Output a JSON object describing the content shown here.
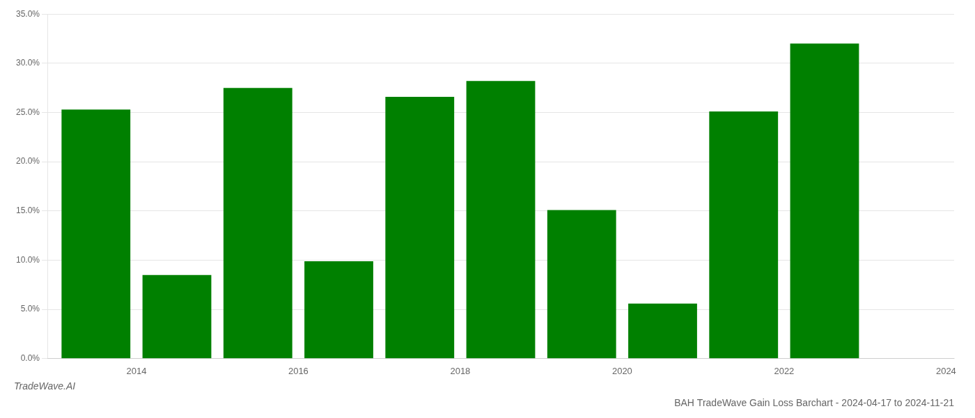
{
  "chart_data": {
    "type": "bar",
    "title": "BAH TradeWave Gain Loss Barchart - 2024-04-17 to 2024-11-21",
    "annotations": [
      "TradeWave.AI"
    ],
    "x": [
      2014,
      2015,
      2016,
      2017,
      2018,
      2019,
      2020,
      2021,
      2022,
      2023
    ],
    "values": [
      0.253,
      0.085,
      0.275,
      0.099,
      0.266,
      0.282,
      0.151,
      0.056,
      0.251,
      0.32
    ],
    "color": "#008000",
    "xlim": [
      2013.4,
      2024.6
    ],
    "xticks": [
      {
        "value": 2014.5,
        "label": "2014"
      },
      {
        "value": 2016.5,
        "label": "2016"
      },
      {
        "value": 2018.5,
        "label": "2018"
      },
      {
        "value": 2020.5,
        "label": "2020"
      },
      {
        "value": 2022.5,
        "label": "2022"
      },
      {
        "value": 2024.5,
        "label": "2024"
      }
    ],
    "ylim": [
      0,
      0.35
    ],
    "yticks": [
      {
        "value": 0,
        "label": "0.0%"
      },
      {
        "value": 0.05,
        "label": "5.0%"
      },
      {
        "value": 0.1,
        "label": "10.0%"
      },
      {
        "value": 0.15,
        "label": "15.0%"
      },
      {
        "value": 0.2,
        "label": "20.0%"
      },
      {
        "value": 0.25,
        "label": "25.0%"
      },
      {
        "value": 0.3,
        "label": "30.0%"
      },
      {
        "value": 0.35,
        "label": "35.0%"
      }
    ],
    "grid": "y"
  }
}
